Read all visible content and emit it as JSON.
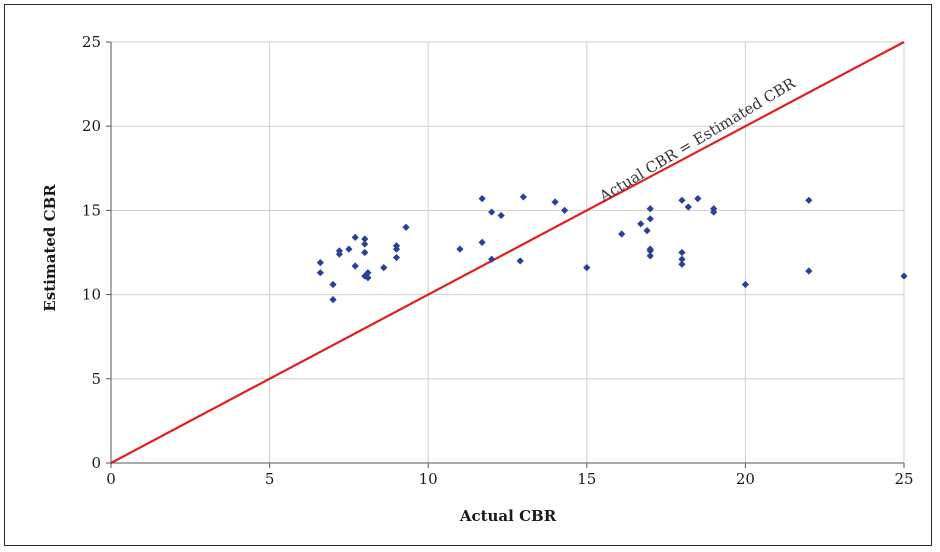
{
  "chart_data": {
    "type": "scatter",
    "xlabel": "Actual CBR",
    "ylabel": "Estimated CBR",
    "xlim": [
      0,
      25
    ],
    "ylim": [
      0,
      25
    ],
    "xticks": [
      0,
      5,
      10,
      15,
      20,
      25
    ],
    "yticks": [
      0,
      5,
      10,
      15,
      20,
      25
    ],
    "grid": true,
    "colors": {
      "points": "#2a3f9a",
      "line": "#e02020",
      "grid": "#cfcfcf"
    },
    "reference_line": {
      "label": "Actual CBR = Estimated CBR",
      "from": [
        0,
        0
      ],
      "to": [
        25,
        25
      ]
    },
    "series": [
      {
        "points": [
          [
            6.6,
            11.9
          ],
          [
            6.6,
            11.3
          ],
          [
            7.0,
            10.6
          ],
          [
            7.0,
            9.7
          ],
          [
            7.2,
            12.6
          ],
          [
            7.2,
            12.4
          ],
          [
            7.5,
            12.7
          ],
          [
            7.7,
            13.4
          ],
          [
            7.7,
            11.7
          ],
          [
            8.0,
            13.3
          ],
          [
            8.0,
            13.0
          ],
          [
            8.0,
            12.5
          ],
          [
            8.0,
            11.1
          ],
          [
            8.1,
            11.3
          ],
          [
            8.1,
            11.0
          ],
          [
            8.6,
            11.6
          ],
          [
            9.0,
            12.9
          ],
          [
            9.0,
            12.7
          ],
          [
            9.0,
            12.2
          ],
          [
            9.3,
            14.0
          ],
          [
            11.0,
            12.7
          ],
          [
            11.7,
            15.7
          ],
          [
            11.7,
            13.1
          ],
          [
            12.0,
            14.9
          ],
          [
            12.0,
            12.1
          ],
          [
            12.3,
            14.7
          ],
          [
            12.9,
            12.0
          ],
          [
            13.0,
            15.8
          ],
          [
            14.0,
            15.5
          ],
          [
            14.3,
            15.0
          ],
          [
            15.0,
            11.6
          ],
          [
            16.1,
            13.6
          ],
          [
            16.7,
            14.2
          ],
          [
            16.9,
            13.8
          ],
          [
            17.0,
            15.1
          ],
          [
            17.0,
            14.5
          ],
          [
            17.0,
            12.7
          ],
          [
            17.0,
            12.6
          ],
          [
            17.0,
            12.3
          ],
          [
            18.0,
            15.6
          ],
          [
            18.0,
            12.5
          ],
          [
            18.0,
            12.1
          ],
          [
            18.0,
            11.8
          ],
          [
            18.2,
            15.2
          ],
          [
            18.5,
            15.7
          ],
          [
            19.0,
            15.1
          ],
          [
            19.0,
            14.9
          ],
          [
            20.0,
            10.6
          ],
          [
            22.0,
            15.6
          ],
          [
            22.0,
            11.4
          ],
          [
            25.0,
            11.1
          ]
        ]
      }
    ]
  }
}
